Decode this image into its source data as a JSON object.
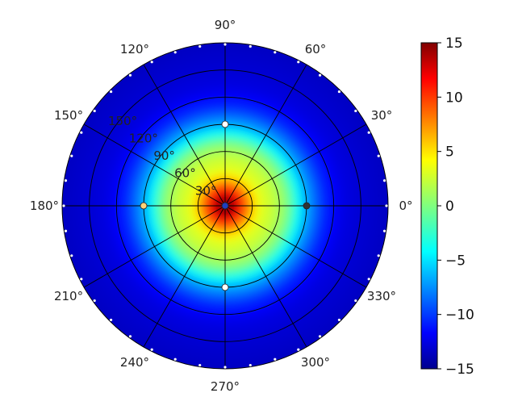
{
  "chart_data": {
    "type": "heatmap",
    "projection": "polar",
    "title": "",
    "angle_ticks": [
      "0°",
      "30°",
      "60°",
      "90°",
      "120°",
      "150°",
      "180°",
      "210°",
      "240°",
      "270°",
      "300°",
      "330°"
    ],
    "radial_ticks": [
      "30°",
      "60°",
      "90°",
      "120°",
      "150°"
    ],
    "radial_range": [
      0,
      180
    ],
    "colormap": "jet",
    "color_range": [
      -15,
      15
    ],
    "colorbar_ticks": [
      "15",
      "10",
      "5",
      "0",
      "−5",
      "−10",
      "−15"
    ],
    "colorbar_tick_values": [
      15,
      10,
      5,
      0,
      -5,
      -10,
      -15
    ],
    "field_profile": {
      "radius_deg": [
        0,
        10,
        20,
        30,
        40,
        55,
        70,
        90,
        110,
        130,
        150,
        180
      ],
      "value": [
        15,
        14,
        10,
        6,
        3,
        2,
        0,
        -6,
        -10,
        -12,
        -12.5,
        -13
      ]
    },
    "markers": [
      {
        "angle_deg": 0,
        "radius_deg": 0,
        "color": "#1f3fbf"
      },
      {
        "angle_deg": 0,
        "radius_deg": 90,
        "color": "#333333"
      },
      {
        "angle_deg": 90,
        "radius_deg": 90,
        "color": "#ffffff"
      },
      {
        "angle_deg": 180,
        "radius_deg": 90,
        "color": "#ffd27a"
      },
      {
        "angle_deg": 270,
        "radius_deg": 90,
        "color": "#ffffff"
      }
    ]
  }
}
